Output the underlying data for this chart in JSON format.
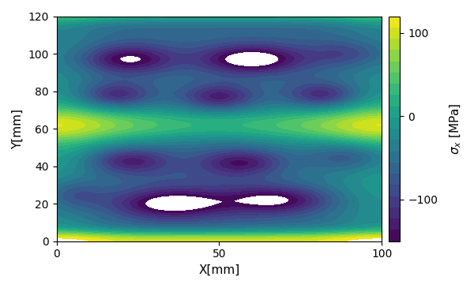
{
  "xlabel": "X[mm]",
  "ylabel": "Y[mm]",
  "colorbar_label": "$\\sigma_x$ [MPa]",
  "x_range": [
    0,
    100
  ],
  "y_range": [
    0,
    120
  ],
  "vmin": -150,
  "vmax": 120,
  "colormap": "viridis",
  "figsize": [
    6.0,
    3.65
  ],
  "dpi": 100,
  "n_levels": 20,
  "colorbar_ticks": [
    100,
    0,
    -100
  ]
}
